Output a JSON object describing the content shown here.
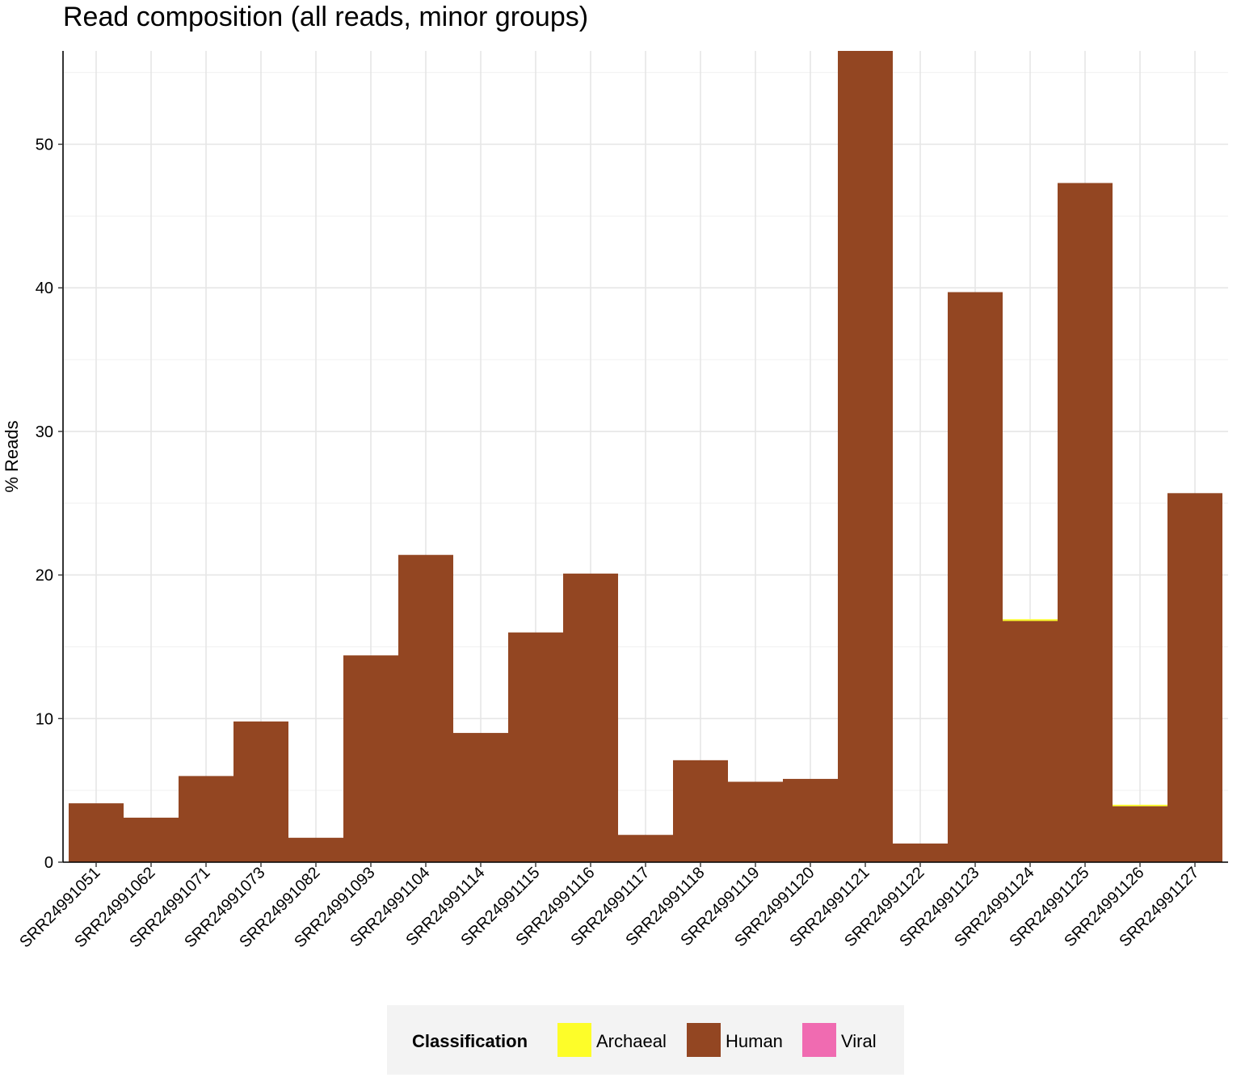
{
  "chart_data": {
    "type": "bar",
    "stacked": true,
    "title": "Read composition (all reads, minor groups)",
    "xlabel": "",
    "ylabel": "% Reads",
    "ylim": [
      0,
      56.5
    ],
    "yticks": [
      0,
      10,
      20,
      30,
      40,
      50
    ],
    "grid": true,
    "legend_position": "bottom",
    "legend_title": "Classification",
    "categories": [
      "SRR24991051",
      "SRR24991062",
      "SRR24991071",
      "SRR24991073",
      "SRR24991082",
      "SRR24991093",
      "SRR24991104",
      "SRR24991114",
      "SRR24991115",
      "SRR24991116",
      "SRR24991117",
      "SRR24991118",
      "SRR24991119",
      "SRR24991120",
      "SRR24991121",
      "SRR24991122",
      "SRR24991123",
      "SRR24991124",
      "SRR24991125",
      "SRR24991126",
      "SRR24991127"
    ],
    "series": [
      {
        "name": "Human",
        "color": "#934622",
        "values": [
          4.1,
          3.1,
          6.0,
          9.8,
          1.7,
          14.4,
          21.4,
          9.0,
          16.0,
          20.1,
          1.9,
          7.1,
          5.6,
          5.8,
          56.5,
          1.3,
          39.7,
          16.8,
          47.3,
          3.9,
          25.7
        ]
      },
      {
        "name": "Archaeal",
        "color": "#fdfd29",
        "values": [
          0,
          0,
          0,
          0,
          0,
          0,
          0,
          0,
          0,
          0,
          0,
          0,
          0,
          0,
          0,
          0,
          0,
          0.12,
          0,
          0.1,
          0
        ]
      },
      {
        "name": "Viral",
        "color": "#f06bb1",
        "values": [
          0,
          0,
          0,
          0,
          0,
          0,
          0,
          0,
          0,
          0,
          0,
          0,
          0,
          0,
          0,
          0,
          0,
          0,
          0,
          0,
          0
        ]
      }
    ],
    "legend_order": [
      "Archaeal",
      "Human",
      "Viral"
    ]
  }
}
